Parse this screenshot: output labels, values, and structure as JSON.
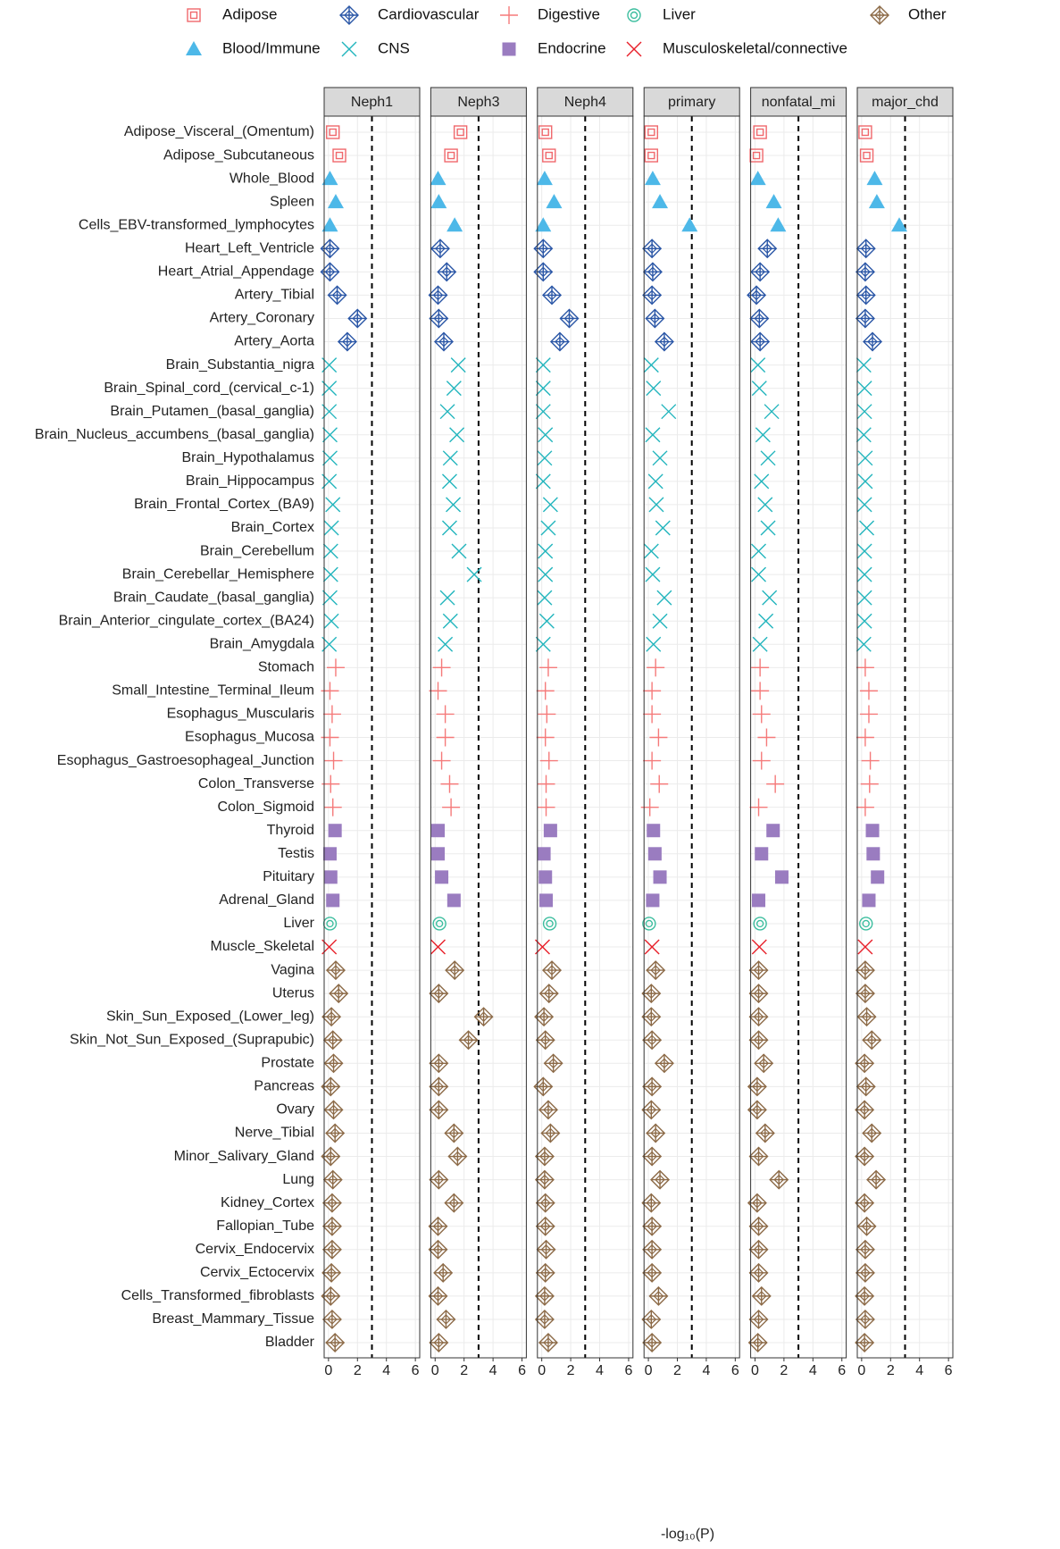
{
  "chart_data": {
    "type": "faceted-dot",
    "x_label": "-log₁₀(P)",
    "xlim": [
      -0.3,
      6.3
    ],
    "xticks": [
      0,
      2,
      4,
      6
    ],
    "reference_line": 3,
    "grid": true,
    "groups": [
      {
        "name": "Adipose",
        "color": "#F0686C",
        "marker": "square-open",
        "categories": [
          "Adipose_Visceral_(Omentum)",
          "Adipose_Subcutaneous"
        ]
      },
      {
        "name": "Blood/Immune",
        "color": "#4DB8E8",
        "marker": "triangle",
        "categories": [
          "Whole_Blood",
          "Spleen",
          "Cells_EBV-transformed_lymphocytes"
        ]
      },
      {
        "name": "Cardiovascular",
        "color": "#2A56A6",
        "marker": "diamond-plus",
        "categories": [
          "Heart_Left_Ventricle",
          "Heart_Atrial_Appendage",
          "Artery_Tibial",
          "Artery_Coronary",
          "Artery_Aorta"
        ]
      },
      {
        "name": "CNS",
        "color": "#22B5BD",
        "marker": "x",
        "categories": [
          "Brain_Substantia_nigra",
          "Brain_Spinal_cord_(cervical_c-1)",
          "Brain_Putamen_(basal_ganglia)",
          "Brain_Nucleus_accumbens_(basal_ganglia)",
          "Brain_Hypothalamus",
          "Brain_Hippocampus",
          "Brain_Frontal_Cortex_(BA9)",
          "Brain_Cortex",
          "Brain_Cerebellum",
          "Brain_Cerebellar_Hemisphere",
          "Brain_Caudate_(basal_ganglia)",
          "Brain_Anterior_cingulate_cortex_(BA24)",
          "Brain_Amygdala"
        ]
      },
      {
        "name": "Digestive",
        "color": "#F57A7A",
        "marker": "plus",
        "categories": [
          "Stomach",
          "Small_Intestine_Terminal_Ileum",
          "Esophagus_Muscularis",
          "Esophagus_Mucosa",
          "Esophagus_Gastroesophageal_Junction",
          "Colon_Transverse",
          "Colon_Sigmoid"
        ]
      },
      {
        "name": "Endocrine",
        "color": "#9A7CC0",
        "marker": "square",
        "categories": [
          "Thyroid",
          "Testis",
          "Pituitary",
          "Adrenal_Gland"
        ]
      },
      {
        "name": "Liver",
        "color": "#3DBE9F",
        "marker": "circle-double",
        "categories": [
          "Liver"
        ]
      },
      {
        "name": "Musculoskeletal/connective",
        "color": "#E8202A",
        "marker": "x",
        "categories": [
          "Muscle_Skeletal"
        ]
      },
      {
        "name": "Other",
        "color": "#8C6A47",
        "marker": "diamond-plus",
        "categories": [
          "Vagina",
          "Uterus",
          "Skin_Sun_Exposed_(Lower_leg)",
          "Skin_Not_Sun_Exposed_(Suprapubic)",
          "Prostate",
          "Pancreas",
          "Ovary",
          "Nerve_Tibial",
          "Minor_Salivary_Gland",
          "Lung",
          "Kidney_Cortex",
          "Fallopian_Tube",
          "Cervix_Endocervix",
          "Cervix_Ectocervix",
          "Cells_Transformed_fibroblasts",
          "Breast_Mammary_Tissue",
          "Bladder"
        ]
      }
    ],
    "panels": [
      {
        "name": "Neph1",
        "values": [
          0.3,
          0.75,
          0.1,
          0.5,
          0.1,
          0.1,
          0.1,
          0.6,
          2.0,
          1.3,
          0.05,
          0.05,
          0.05,
          0.1,
          0.1,
          0.05,
          0.3,
          0.2,
          0.15,
          0.15,
          0.1,
          0.2,
          0.05,
          0.5,
          0.1,
          0.25,
          0.1,
          0.35,
          0.15,
          0.3,
          0.45,
          0.1,
          0.15,
          0.3,
          0.1,
          0.05,
          0.5,
          0.7,
          0.2,
          0.3,
          0.35,
          0.15,
          0.35,
          0.45,
          0.15,
          0.3,
          0.25,
          0.25,
          0.25,
          0.2,
          0.15,
          0.25,
          0.45
        ]
      },
      {
        "name": "Neph3",
        "values": [
          1.75,
          1.1,
          0.2,
          0.25,
          1.35,
          0.35,
          0.8,
          0.2,
          0.25,
          0.6,
          1.6,
          1.3,
          0.85,
          1.5,
          1.05,
          1.0,
          1.25,
          1.0,
          1.65,
          2.7,
          0.85,
          1.05,
          0.7,
          0.45,
          0.2,
          0.7,
          0.7,
          0.45,
          1.0,
          1.1,
          0.2,
          0.2,
          0.45,
          1.3,
          0.3,
          0.2,
          1.35,
          0.25,
          3.35,
          2.3,
          0.25,
          0.25,
          0.25,
          1.3,
          1.55,
          0.25,
          1.3,
          0.2,
          0.2,
          0.55,
          0.2,
          0.75,
          0.25
        ]
      },
      {
        "name": "Neph4",
        "values": [
          0.25,
          0.5,
          0.2,
          0.85,
          0.1,
          0.1,
          0.1,
          0.7,
          1.9,
          1.25,
          0.1,
          0.1,
          0.1,
          0.25,
          0.2,
          0.1,
          0.6,
          0.45,
          0.25,
          0.25,
          0.2,
          0.35,
          0.1,
          0.45,
          0.25,
          0.35,
          0.25,
          0.5,
          0.3,
          0.3,
          0.6,
          0.15,
          0.25,
          0.3,
          0.55,
          0.05,
          0.7,
          0.5,
          0.15,
          0.25,
          0.8,
          0.1,
          0.45,
          0.6,
          0.2,
          0.2,
          0.25,
          0.25,
          0.3,
          0.25,
          0.2,
          0.2,
          0.45
        ]
      },
      {
        "name": "primary",
        "values": [
          0.2,
          0.2,
          0.3,
          0.8,
          2.85,
          0.25,
          0.3,
          0.25,
          0.45,
          1.1,
          0.2,
          0.35,
          1.4,
          0.3,
          0.8,
          0.5,
          0.55,
          1.0,
          0.2,
          0.3,
          1.1,
          0.8,
          0.35,
          0.5,
          0.25,
          0.25,
          0.7,
          0.25,
          0.75,
          0.1,
          0.35,
          0.45,
          0.8,
          0.3,
          0.05,
          0.25,
          0.5,
          0.2,
          0.2,
          0.25,
          1.1,
          0.25,
          0.2,
          0.5,
          0.25,
          0.8,
          0.2,
          0.25,
          0.25,
          0.25,
          0.7,
          0.2,
          0.25
        ]
      },
      {
        "name": "nonfatal_mi",
        "values": [
          0.35,
          0.1,
          0.2,
          1.3,
          1.6,
          0.85,
          0.35,
          0.1,
          0.3,
          0.35,
          0.2,
          0.3,
          1.15,
          0.55,
          0.9,
          0.45,
          0.7,
          0.9,
          0.25,
          0.25,
          1.0,
          0.75,
          0.35,
          0.35,
          0.35,
          0.45,
          0.8,
          0.45,
          1.4,
          0.25,
          1.25,
          0.45,
          1.85,
          0.25,
          0.35,
          0.3,
          0.25,
          0.25,
          0.25,
          0.25,
          0.6,
          0.15,
          0.15,
          0.7,
          0.25,
          1.65,
          0.15,
          0.25,
          0.25,
          0.25,
          0.45,
          0.25,
          0.2
        ]
      },
      {
        "name": "major_chd",
        "values": [
          0.25,
          0.35,
          0.9,
          1.05,
          2.6,
          0.3,
          0.25,
          0.3,
          0.25,
          0.75,
          0.15,
          0.2,
          0.2,
          0.15,
          0.25,
          0.25,
          0.2,
          0.35,
          0.2,
          0.2,
          0.2,
          0.2,
          0.15,
          0.25,
          0.5,
          0.5,
          0.25,
          0.6,
          0.55,
          0.25,
          0.75,
          0.8,
          1.1,
          0.5,
          0.3,
          0.25,
          0.25,
          0.25,
          0.35,
          0.7,
          0.2,
          0.3,
          0.2,
          0.7,
          0.2,
          1.0,
          0.2,
          0.35,
          0.25,
          0.25,
          0.2,
          0.25,
          0.2
        ]
      }
    ]
  }
}
